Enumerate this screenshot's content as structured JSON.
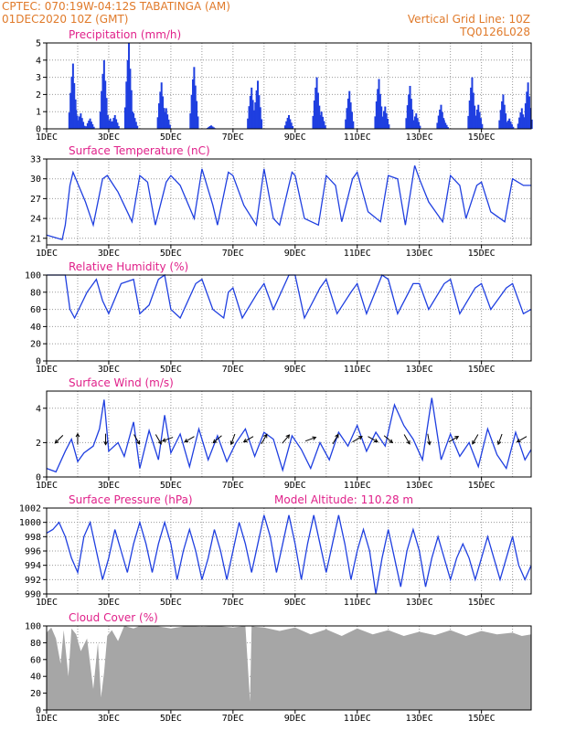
{
  "header": {
    "line1_left": "CPTEC:    070:19W-04:12S   TABATINGA (AM)",
    "line2_left": "01DEC2020 10Z (GMT)",
    "line2_right": "Vertical Grid Line: 10Z",
    "line3_right": "TQ0126L028"
  },
  "colors": {
    "header": "#e07a2a",
    "panel_title": "#e0218a",
    "series": "#1f3fe0",
    "cloud": "#a6a6a6",
    "grid": "#999999"
  },
  "chart_data": [
    {
      "id": "precip",
      "type": "bar",
      "title": "Precipitation (mm/h)",
      "ylim": [
        0,
        5
      ],
      "yticks": [
        0,
        1,
        2,
        3,
        4,
        5
      ],
      "xticks": [
        "1DEC",
        "3DEC",
        "5DEC",
        "7DEC",
        "9DEC",
        "11DEC",
        "13DEC",
        "15DEC"
      ],
      "x_days": [
        0,
        15.6
      ],
      "events": [
        {
          "day": 0.85,
          "peak": 3.8
        },
        {
          "day": 0.95,
          "peak": 1.1
        },
        {
          "day": 1.1,
          "peak": 0.9
        },
        {
          "day": 1.4,
          "peak": 0.6
        },
        {
          "day": 1.85,
          "peak": 4.0
        },
        {
          "day": 2.05,
          "peak": 0.6
        },
        {
          "day": 2.2,
          "peak": 0.8
        },
        {
          "day": 2.65,
          "peak": 5.0
        },
        {
          "day": 2.8,
          "peak": 0.9
        },
        {
          "day": 3.7,
          "peak": 2.7
        },
        {
          "day": 3.85,
          "peak": 1.2
        },
        {
          "day": 4.75,
          "peak": 3.6
        },
        {
          "day": 5.3,
          "peak": 0.2
        },
        {
          "day": 6.6,
          "peak": 2.4
        },
        {
          "day": 6.8,
          "peak": 2.8
        },
        {
          "day": 7.8,
          "peak": 0.8
        },
        {
          "day": 8.7,
          "peak": 3.0
        },
        {
          "day": 8.85,
          "peak": 1.0
        },
        {
          "day": 9.75,
          "peak": 2.2
        },
        {
          "day": 10.7,
          "peak": 2.9
        },
        {
          "day": 10.9,
          "peak": 1.3
        },
        {
          "day": 11.7,
          "peak": 2.5
        },
        {
          "day": 11.9,
          "peak": 0.9
        },
        {
          "day": 12.7,
          "peak": 1.4
        },
        {
          "day": 12.8,
          "peak": 0.5
        },
        {
          "day": 13.7,
          "peak": 3.0
        },
        {
          "day": 13.9,
          "peak": 1.4
        },
        {
          "day": 14.7,
          "peak": 2.0
        },
        {
          "day": 14.9,
          "peak": 0.6
        },
        {
          "day": 15.3,
          "peak": 1.2
        },
        {
          "day": 15.5,
          "peak": 2.7
        }
      ]
    },
    {
      "id": "temp",
      "type": "line",
      "title": "Surface Temperature (nC)",
      "ylim": [
        20,
        33
      ],
      "yticks": [
        21,
        24,
        27,
        30,
        33
      ],
      "xticks": [
        "1DEC",
        "3DEC",
        "5DEC",
        "7DEC",
        "9DEC",
        "11DEC",
        "13DEC",
        "15DEC"
      ],
      "days": [
        0,
        0.5,
        0.6,
        0.75,
        0.85,
        1.25,
        1.5,
        1.8,
        1.95,
        2.3,
        2.75,
        3.0,
        3.25,
        3.5,
        3.85,
        4.0,
        4.3,
        4.75,
        5.0,
        5.35,
        5.5,
        5.85,
        6.0,
        6.35,
        6.75,
        7.0,
        7.3,
        7.5,
        7.9,
        8.0,
        8.3,
        8.75,
        9.0,
        9.3,
        9.5,
        9.85,
        10.0,
        10.35,
        10.75,
        11.0,
        11.3,
        11.55,
        11.85,
        12.0,
        12.3,
        12.75,
        13.0,
        13.3,
        13.5,
        13.85,
        14.0,
        14.3,
        14.75,
        15.0,
        15.35,
        15.6
      ],
      "values": [
        21.5,
        20.8,
        23.0,
        29.0,
        31.0,
        26.5,
        23.0,
        30.0,
        30.5,
        28.0,
        23.5,
        30.5,
        29.5,
        23.0,
        29.5,
        30.5,
        29.0,
        24.0,
        31.5,
        26.0,
        23.0,
        31.0,
        30.5,
        26.0,
        23.0,
        31.5,
        24.0,
        23.0,
        31.0,
        30.5,
        24.0,
        23.0,
        30.5,
        29.0,
        23.5,
        30.0,
        31.0,
        25.0,
        23.5,
        30.5,
        30.0,
        23.0,
        32.0,
        30.0,
        26.5,
        23.5,
        30.5,
        29.0,
        24.0,
        29.0,
        29.5,
        25.0,
        23.5,
        30.0,
        29.0,
        29.0
      ]
    },
    {
      "id": "rh",
      "type": "line",
      "title": "Relative Humidity (%)",
      "ylim": [
        0,
        100
      ],
      "yticks": [
        0,
        20,
        40,
        60,
        80,
        100
      ],
      "xticks": [
        "1DEC",
        "3DEC",
        "5DEC",
        "7DEC",
        "9DEC",
        "11DEC",
        "13DEC",
        "15DEC"
      ],
      "days": [
        0,
        0.6,
        0.75,
        0.9,
        1.3,
        1.6,
        1.8,
        2.0,
        2.4,
        2.8,
        3.0,
        3.3,
        3.6,
        3.8,
        4.0,
        4.3,
        4.8,
        5.0,
        5.35,
        5.7,
        5.85,
        6.0,
        6.3,
        6.8,
        7.0,
        7.3,
        7.8,
        8.0,
        8.3,
        8.8,
        9.0,
        9.35,
        9.8,
        10.0,
        10.3,
        10.8,
        11.0,
        11.3,
        11.8,
        12.0,
        12.3,
        12.8,
        13.0,
        13.3,
        13.8,
        14.0,
        14.3,
        14.8,
        15.0,
        15.35,
        15.6
      ],
      "values": [
        100,
        100,
        60,
        50,
        80,
        95,
        70,
        55,
        90,
        95,
        55,
        65,
        95,
        100,
        60,
        50,
        90,
        95,
        60,
        50,
        80,
        85,
        50,
        80,
        90,
        60,
        100,
        100,
        50,
        85,
        95,
        55,
        80,
        90,
        55,
        100,
        95,
        55,
        90,
        90,
        60,
        90,
        95,
        55,
        85,
        90,
        60,
        85,
        90,
        55,
        60
      ]
    },
    {
      "id": "wind",
      "type": "line",
      "title": "Surface Wind (m/s)",
      "ylim": [
        0,
        5
      ],
      "yticks": [
        0,
        2,
        4
      ],
      "xticks": [
        "1DEC",
        "3DEC",
        "5DEC",
        "7DEC",
        "9DEC",
        "11DEC",
        "13DEC",
        "15DEC"
      ],
      "days": [
        0,
        0.3,
        0.6,
        0.8,
        1.0,
        1.2,
        1.5,
        1.7,
        1.85,
        2.0,
        2.3,
        2.5,
        2.8,
        3.0,
        3.3,
        3.6,
        3.8,
        4.0,
        4.3,
        4.6,
        4.9,
        5.2,
        5.5,
        5.8,
        6.1,
        6.4,
        6.7,
        7.0,
        7.3,
        7.6,
        7.9,
        8.2,
        8.5,
        8.8,
        9.1,
        9.4,
        9.7,
        10.0,
        10.3,
        10.6,
        10.9,
        11.2,
        11.5,
        11.8,
        12.1,
        12.4,
        12.7,
        13.0,
        13.3,
        13.6,
        13.9,
        14.2,
        14.5,
        14.8,
        15.1,
        15.4,
        15.6
      ],
      "values": [
        0.5,
        0.3,
        1.5,
        2.2,
        0.9,
        1.4,
        1.8,
        2.8,
        4.5,
        1.5,
        2.0,
        1.2,
        3.2,
        0.5,
        2.7,
        1.0,
        3.6,
        1.4,
        2.5,
        0.6,
        2.8,
        1.0,
        2.4,
        0.9,
        2.0,
        2.8,
        1.2,
        2.6,
        2.2,
        0.4,
        2.4,
        1.6,
        0.5,
        2.0,
        1.0,
        2.6,
        1.8,
        3.0,
        1.5,
        2.6,
        1.8,
        4.2,
        3.0,
        2.2,
        1.0,
        4.6,
        1.0,
        2.5,
        1.2,
        2.0,
        0.6,
        2.8,
        1.3,
        0.5,
        2.6,
        1.0,
        1.6
      ],
      "vectors": [
        {
          "day": 0.4,
          "angle": 225
        },
        {
          "day": 1.0,
          "angle": 90
        },
        {
          "day": 1.9,
          "angle": 270
        },
        {
          "day": 2.9,
          "angle": 300
        },
        {
          "day": 3.6,
          "angle": 300
        },
        {
          "day": 3.9,
          "angle": 200
        },
        {
          "day": 4.6,
          "angle": 210
        },
        {
          "day": 5.5,
          "angle": 220
        },
        {
          "day": 6.0,
          "angle": 250
        },
        {
          "day": 6.5,
          "angle": 210
        },
        {
          "day": 7.0,
          "angle": 60
        },
        {
          "day": 7.7,
          "angle": 50
        },
        {
          "day": 8.5,
          "angle": 20
        },
        {
          "day": 9.3,
          "angle": 60
        },
        {
          "day": 10.0,
          "angle": 30
        },
        {
          "day": 10.5,
          "angle": 330
        },
        {
          "day": 11.0,
          "angle": 320
        },
        {
          "day": 11.6,
          "angle": 300
        },
        {
          "day": 12.3,
          "angle": 280
        },
        {
          "day": 13.1,
          "angle": 30
        },
        {
          "day": 13.8,
          "angle": 240
        },
        {
          "day": 14.6,
          "angle": 250
        },
        {
          "day": 15.3,
          "angle": 210
        }
      ]
    },
    {
      "id": "pres",
      "type": "line",
      "title": "Surface Pressure (hPa)",
      "subtitle": "Model Altitude: 110.28 m",
      "ylim": [
        990,
        1002
      ],
      "yticks": [
        990,
        992,
        994,
        996,
        998,
        1000,
        1002
      ],
      "xticks": [
        "1DEC",
        "3DEC",
        "5DEC",
        "7DEC",
        "9DEC",
        "11DEC",
        "13DEC",
        "15DEC"
      ],
      "days": [
        0,
        0.2,
        0.4,
        0.6,
        0.8,
        1.0,
        1.2,
        1.4,
        1.6,
        1.8,
        2.0,
        2.2,
        2.4,
        2.6,
        2.8,
        3.0,
        3.2,
        3.4,
        3.6,
        3.8,
        4.0,
        4.2,
        4.4,
        4.6,
        4.8,
        5.0,
        5.2,
        5.4,
        5.6,
        5.8,
        6.0,
        6.2,
        6.4,
        6.6,
        6.8,
        7.0,
        7.2,
        7.4,
        7.6,
        7.8,
        8.0,
        8.2,
        8.4,
        8.6,
        8.8,
        9.0,
        9.2,
        9.4,
        9.6,
        9.8,
        10.0,
        10.2,
        10.4,
        10.6,
        10.8,
        11.0,
        11.2,
        11.4,
        11.6,
        11.8,
        12.0,
        12.2,
        12.4,
        12.6,
        12.8,
        13.0,
        13.2,
        13.4,
        13.6,
        13.8,
        14.0,
        14.2,
        14.4,
        14.6,
        14.8,
        15.0,
        15.2,
        15.4,
        15.6
      ],
      "values": [
        998.5,
        999,
        1000,
        998,
        995,
        993,
        998,
        1000,
        996,
        992,
        995,
        999,
        996,
        993,
        997,
        1000,
        997,
        993,
        997,
        1000,
        997,
        992,
        996,
        999,
        996,
        992,
        995,
        999,
        996,
        992,
        996,
        1000,
        997,
        993,
        997,
        1001,
        998,
        993,
        997,
        1001,
        997,
        992,
        997,
        1001,
        997,
        993,
        997,
        1001,
        997,
        992,
        996,
        999,
        996,
        990,
        995,
        999,
        995,
        991,
        996,
        999,
        996,
        991,
        995,
        998,
        995,
        992,
        995,
        997,
        995,
        992,
        995,
        998,
        995,
        992,
        995,
        998,
        994,
        992,
        994
      ]
    },
    {
      "id": "cloud",
      "type": "area",
      "title": "Cloud Cover (%)",
      "ylim": [
        0,
        100
      ],
      "yticks": [
        0,
        20,
        40,
        60,
        80,
        100
      ],
      "xticks": [
        "1DEC",
        "3DEC",
        "5DEC",
        "7DEC",
        "9DEC",
        "11DEC",
        "13DEC",
        "15DEC"
      ],
      "days": [
        0,
        0.15,
        0.3,
        0.45,
        0.55,
        0.7,
        0.8,
        0.95,
        1.1,
        1.3,
        1.5,
        1.65,
        1.75,
        1.85,
        1.95,
        2.1,
        2.3,
        2.5,
        2.8,
        3.0,
        3.5,
        4.0,
        4.5,
        5.0,
        5.5,
        6.0,
        6.4,
        6.55,
        6.6,
        6.7,
        7.0,
        7.5,
        8.0,
        8.5,
        9.0,
        9.5,
        10.0,
        10.5,
        11.0,
        11.5,
        12.0,
        12.5,
        13.0,
        13.5,
        14.0,
        14.5,
        15.0,
        15.3,
        15.6
      ],
      "values": [
        92,
        98,
        85,
        55,
        95,
        40,
        97,
        90,
        70,
        85,
        25,
        80,
        15,
        45,
        88,
        95,
        82,
        100,
        97,
        100,
        100,
        97,
        100,
        99,
        100,
        98,
        100,
        10,
        100,
        99,
        98,
        94,
        98,
        90,
        96,
        88,
        97,
        90,
        95,
        88,
        93,
        89,
        95,
        88,
        94,
        90,
        92,
        88,
        90
      ]
    }
  ]
}
